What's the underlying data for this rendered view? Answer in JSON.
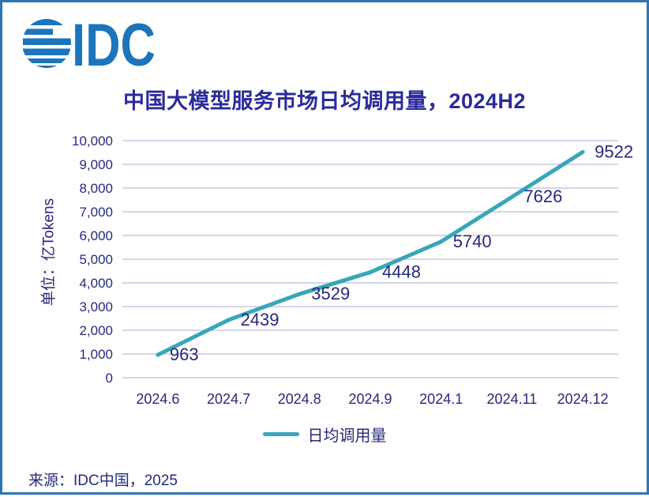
{
  "logo": {
    "text": "IDC",
    "color": "#1C75BC",
    "icon": "globe-stripes"
  },
  "chart_data": {
    "type": "line",
    "title": "中国大模型服务市场日均调用量，2024H2",
    "categories": [
      "2024.6",
      "2024.7",
      "2024.8",
      "2024.9",
      "2024.1",
      "2024.11",
      "2024.12"
    ],
    "series": [
      {
        "name": "日均调用量",
        "color": "#38A6BA",
        "values": [
          963,
          2439,
          3529,
          4448,
          5740,
          7626,
          9522
        ]
      }
    ],
    "ylabel": "单位：亿Tokens",
    "ylim": [
      0,
      10000
    ],
    "ytick_step": 1000,
    "ytick_format": "thousands-comma",
    "grid": true,
    "legend_position": "bottom",
    "data_labels": true
  },
  "legend": {
    "items": [
      {
        "label": "日均调用量",
        "color": "#38A6BA"
      }
    ]
  },
  "source": "来源：IDC中国，2025",
  "colors": {
    "border": "#2E75B6",
    "background": "#FFFFFF",
    "text": "#28287E",
    "title": "#2B2B9C",
    "gridline": "#C9C7E1",
    "line": "#38A6BA",
    "logo": "#1C75BC"
  }
}
